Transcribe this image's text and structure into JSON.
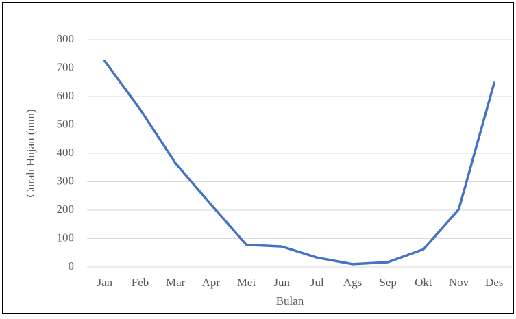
{
  "chart_data": {
    "type": "line",
    "x_label": "Bulan",
    "y_label": "Curah Hujan (mm)",
    "categories": [
      "Jan",
      "Feb",
      "Mar",
      "Apr",
      "Mei",
      "Jun",
      "Jul",
      "Ags",
      "Sep",
      "Okt",
      "Nov",
      "Des"
    ],
    "series": [
      {
        "name": "Curah Hujan",
        "color": "#4472c4",
        "values": [
          725,
          555,
          365,
          220,
          78,
          72,
          33,
          10,
          17,
          62,
          203,
          648
        ]
      }
    ],
    "ylim": [
      0,
      800
    ],
    "yticks": [
      0,
      100,
      200,
      300,
      400,
      500,
      600,
      700,
      800
    ],
    "grid": true
  }
}
